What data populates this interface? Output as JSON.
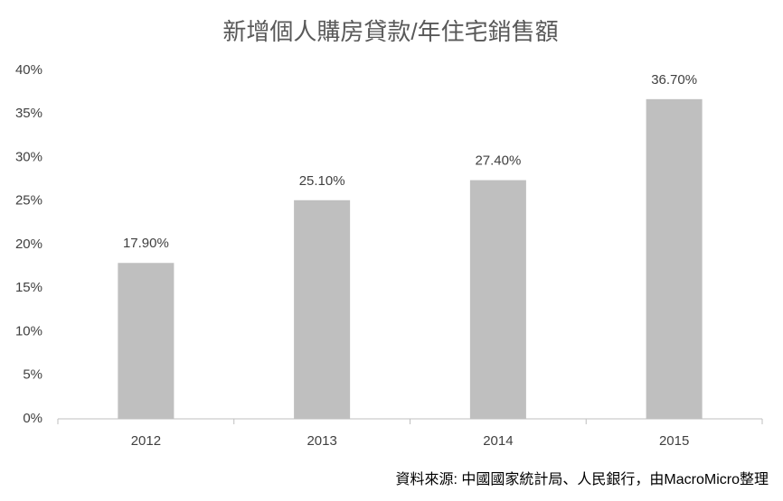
{
  "chart_data": {
    "type": "bar",
    "title": "新增個人購房貸款/年住宅銷售額",
    "categories": [
      "2012",
      "2013",
      "2014",
      "2015"
    ],
    "values": [
      17.9,
      25.1,
      27.4,
      36.7
    ],
    "value_labels": [
      "17.90%",
      "25.10%",
      "27.40%",
      "36.70%"
    ],
    "color": "#bfbfbf",
    "ylim": [
      0,
      40
    ],
    "yticks": [
      {
        "value": 0,
        "label": "0%"
      },
      {
        "value": 5,
        "label": "5%"
      },
      {
        "value": 10,
        "label": "10%"
      },
      {
        "value": 15,
        "label": "15%"
      },
      {
        "value": 20,
        "label": "20%"
      },
      {
        "value": 25,
        "label": "25%"
      },
      {
        "value": 30,
        "label": "30%"
      },
      {
        "value": 35,
        "label": "35%"
      },
      {
        "value": 40,
        "label": "40%"
      }
    ],
    "grid": false,
    "source": "資料來源: 中國國家統計局、人民銀行，由MacroMicro整理"
  }
}
